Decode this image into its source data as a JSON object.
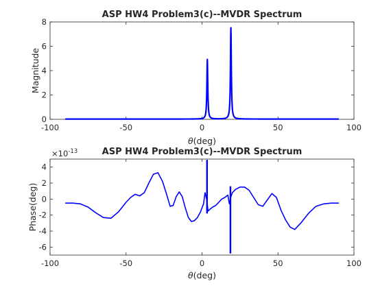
{
  "chart_data": [
    {
      "type": "line",
      "title": "ASP HW4 Problem3(c)--MVDR Spectrum",
      "xlabel_symbol": "θ",
      "xlabel_rest": "(deg)",
      "ylabel": "Magnitude",
      "xlim": [
        -100,
        100
      ],
      "ylim": [
        0,
        8
      ],
      "xticks": [
        "-100",
        "-50",
        "0",
        "50",
        "100"
      ],
      "yticks": [
        "0",
        "2",
        "4",
        "6",
        "8"
      ],
      "grid": false,
      "color": "#0000ff",
      "peaks": [
        {
          "x": 3.5,
          "y": 4.9
        },
        {
          "x": 19,
          "y": 7.5
        }
      ],
      "baseline": 0.02,
      "x_range_data": [
        -90,
        90
      ]
    },
    {
      "type": "line",
      "title": "ASP HW4 Problem3(c)--MVDR Spectrum",
      "xlabel_symbol": "θ",
      "xlabel_rest": "(deg)",
      "ylabel": "Phase(deg)",
      "y_scale_base": "×10",
      "y_scale_exp": "-13",
      "xlim": [
        -100,
        100
      ],
      "ylim": [
        -7,
        5
      ],
      "xticks": [
        "-100",
        "-50",
        "0",
        "50",
        "100"
      ],
      "yticks": [
        "-6",
        "-4",
        "-2",
        "0",
        "2",
        "4"
      ],
      "grid": false,
      "color": "#0000ff",
      "x": [
        -90,
        -85,
        -80,
        -75,
        -70,
        -65,
        -60,
        -55,
        -50,
        -47,
        -44,
        -41,
        -38,
        -35,
        -32,
        -29,
        -26,
        -23,
        -21,
        -19,
        -17,
        -15,
        -13,
        -11,
        -9,
        -7,
        -5,
        -3,
        -1,
        1,
        2,
        3,
        4,
        5,
        7,
        9,
        11,
        13,
        15,
        17,
        18,
        19,
        20,
        22,
        25,
        28,
        31,
        34,
        37,
        40,
        43,
        46,
        49,
        52,
        55,
        58,
        61,
        65,
        70,
        75,
        80,
        85,
        90
      ],
      "values": [
        -0.5,
        -0.5,
        -0.6,
        -1.0,
        -1.7,
        -2.3,
        -2.4,
        -1.6,
        -0.4,
        0.2,
        0.6,
        0.4,
        0.8,
        2.0,
        3.1,
        3.3,
        2.2,
        0.4,
        -0.9,
        -0.8,
        0.3,
        0.9,
        0.3,
        -1.1,
        -2.3,
        -2.8,
        -2.7,
        -2.3,
        -1.6,
        -0.6,
        0.8,
        0.0,
        -1.5,
        -1.3,
        -1.0,
        -0.8,
        -0.4,
        0.0,
        0.2,
        0.5,
        -0.6,
        0.3,
        0.8,
        1.2,
        1.5,
        1.5,
        1.1,
        0.2,
        -0.7,
        -0.9,
        -0.1,
        0.7,
        0.2,
        -1.4,
        -2.6,
        -3.5,
        -3.8,
        -3.0,
        -1.8,
        -0.9,
        -0.6,
        -0.5,
        -0.5
      ],
      "spikes": [
        {
          "x": 3.3,
          "top": 4.9,
          "bottom": -1.8
        },
        {
          "x": 18.7,
          "top": 1.6,
          "bottom": -6.8
        }
      ]
    }
  ]
}
